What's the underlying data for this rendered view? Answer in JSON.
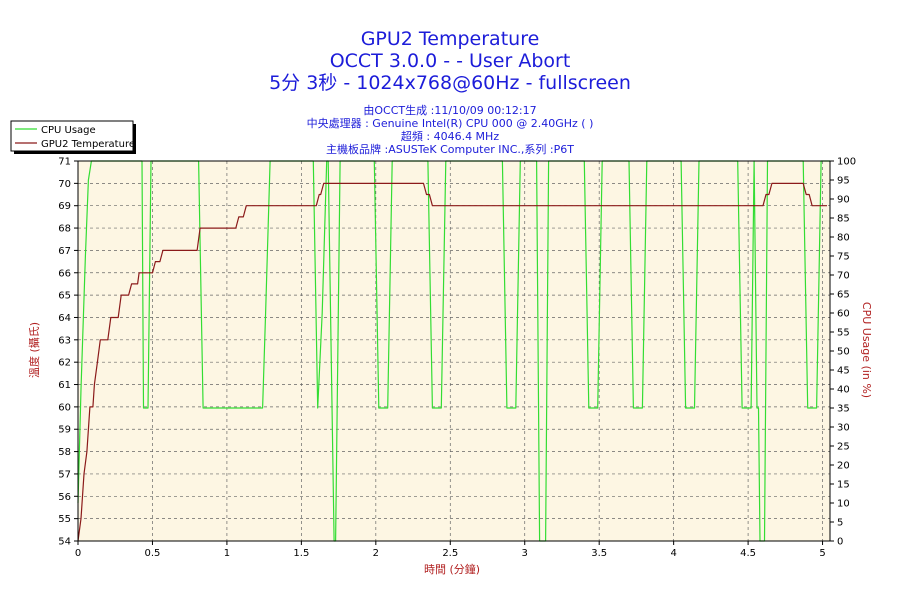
{
  "header": {
    "title1": "GPU2 Temperature",
    "title2": "OCCT 3.0.0 -  - User Abort",
    "title3": "5分 3秒 - 1024x768@60Hz - fullscreen",
    "info1": "由OCCT生成 :11/10/09 00:12:17",
    "info2": "中央處理器 : Genuine Intel(R) CPU 000 @ 2.40GHz ( )",
    "info3": "超頻 : 4046.4 MHz",
    "info4": "主機板品牌 :ASUSTeK Computer INC.,系列 :P6T"
  },
  "chart_data": {
    "type": "line",
    "xlabel": "時間 (分鐘)",
    "ylabel_left": "溫度 (攝氏)",
    "ylabel_right": "CPU Usage (in %)",
    "xlim": [
      0,
      5.05
    ],
    "ylim_left": [
      54,
      71
    ],
    "ylim_right": [
      0,
      100
    ],
    "x_ticks": [
      0,
      0.5,
      1,
      1.5,
      2,
      2.5,
      3,
      3.5,
      4,
      4.5,
      5
    ],
    "x_tick_labels": [
      "0",
      "0.5",
      "1",
      "1.5",
      "2",
      "2.5",
      "3",
      "3.5",
      "4",
      "4.5",
      "5"
    ],
    "y_left_ticks": [
      54,
      55,
      56,
      57,
      58,
      59,
      60,
      61,
      62,
      63,
      64,
      65,
      66,
      67,
      68,
      69,
      70,
      71
    ],
    "y_right_ticks": [
      0,
      5,
      10,
      15,
      20,
      25,
      30,
      35,
      40,
      45,
      50,
      55,
      60,
      65,
      70,
      75,
      80,
      85,
      90,
      95,
      100
    ],
    "grid": true,
    "legend_position": "top-left",
    "series": [
      {
        "name": "CPU Usage",
        "axis": "right",
        "color": "#33dd33",
        "x": [
          0,
          0.02,
          0.05,
          0.07,
          0.09,
          0.1,
          0.43,
          0.44,
          0.46,
          0.47,
          0.49,
          0.5,
          0.81,
          0.84,
          0.87,
          1.24,
          1.26,
          1.29,
          1.58,
          1.61,
          1.64,
          1.67,
          1.68,
          1.72,
          1.73,
          1.76,
          1.77,
          1.8,
          1.81,
          1.99,
          2.02,
          2.05,
          2.08,
          2.11,
          2.35,
          2.38,
          2.41,
          2.44,
          2.47,
          2.85,
          2.88,
          2.91,
          2.94,
          2.97,
          3.08,
          3.1,
          3.12,
          3.14,
          3.16,
          3.18,
          3.21,
          3.4,
          3.43,
          3.46,
          3.49,
          3.52,
          3.7,
          3.73,
          3.76,
          3.79,
          3.82,
          4.05,
          4.08,
          4.11,
          4.14,
          4.17,
          4.43,
          4.46,
          4.49,
          4.52,
          4.54,
          4.56,
          4.57,
          4.58,
          4.61,
          4.63,
          4.65,
          4.67,
          4.87,
          4.9,
          4.93,
          4.96,
          4.99,
          5.05
        ],
        "values": [
          10,
          40,
          75,
          95,
          100,
          100,
          100,
          35,
          35,
          35,
          100,
          100,
          100,
          35,
          35,
          35,
          60,
          100,
          100,
          35,
          60,
          100,
          100,
          0,
          0,
          100,
          100,
          100,
          100,
          100,
          35,
          35,
          35,
          100,
          100,
          35,
          35,
          35,
          100,
          100,
          35,
          35,
          35,
          100,
          100,
          0,
          0,
          0,
          100,
          100,
          100,
          100,
          35,
          35,
          35,
          100,
          100,
          35,
          35,
          35,
          100,
          100,
          35,
          35,
          35,
          100,
          100,
          35,
          35,
          35,
          100,
          35,
          35,
          0,
          0,
          100,
          100,
          100,
          100,
          35,
          35,
          35,
          100,
          100
        ]
      },
      {
        "name": "GPU2 Temperature",
        "axis": "left",
        "color": "#8b1a1a",
        "x": [
          0,
          0.02,
          0.04,
          0.06,
          0.08,
          0.1,
          0.11,
          0.13,
          0.15,
          0.2,
          0.22,
          0.27,
          0.29,
          0.34,
          0.36,
          0.4,
          0.41,
          0.5,
          0.52,
          0.55,
          0.57,
          0.8,
          0.82,
          1.06,
          1.08,
          1.11,
          1.13,
          1.6,
          1.62,
          1.63,
          1.65,
          2.32,
          2.34,
          2.36,
          2.38,
          4.6,
          4.62,
          4.64,
          4.66,
          4.87,
          4.89,
          4.91,
          4.93,
          5.03
        ],
        "values": [
          54,
          55,
          57,
          58,
          60,
          60,
          61,
          62,
          63,
          63,
          64,
          64,
          65,
          65,
          65.5,
          65.5,
          66,
          66,
          66.5,
          66.5,
          67,
          67,
          68,
          68,
          68.5,
          68.5,
          69,
          69,
          69.5,
          69.5,
          70,
          70,
          69.5,
          69.5,
          69,
          69,
          69.5,
          69.5,
          70,
          70,
          69.5,
          69.5,
          69,
          69
        ]
      }
    ]
  }
}
